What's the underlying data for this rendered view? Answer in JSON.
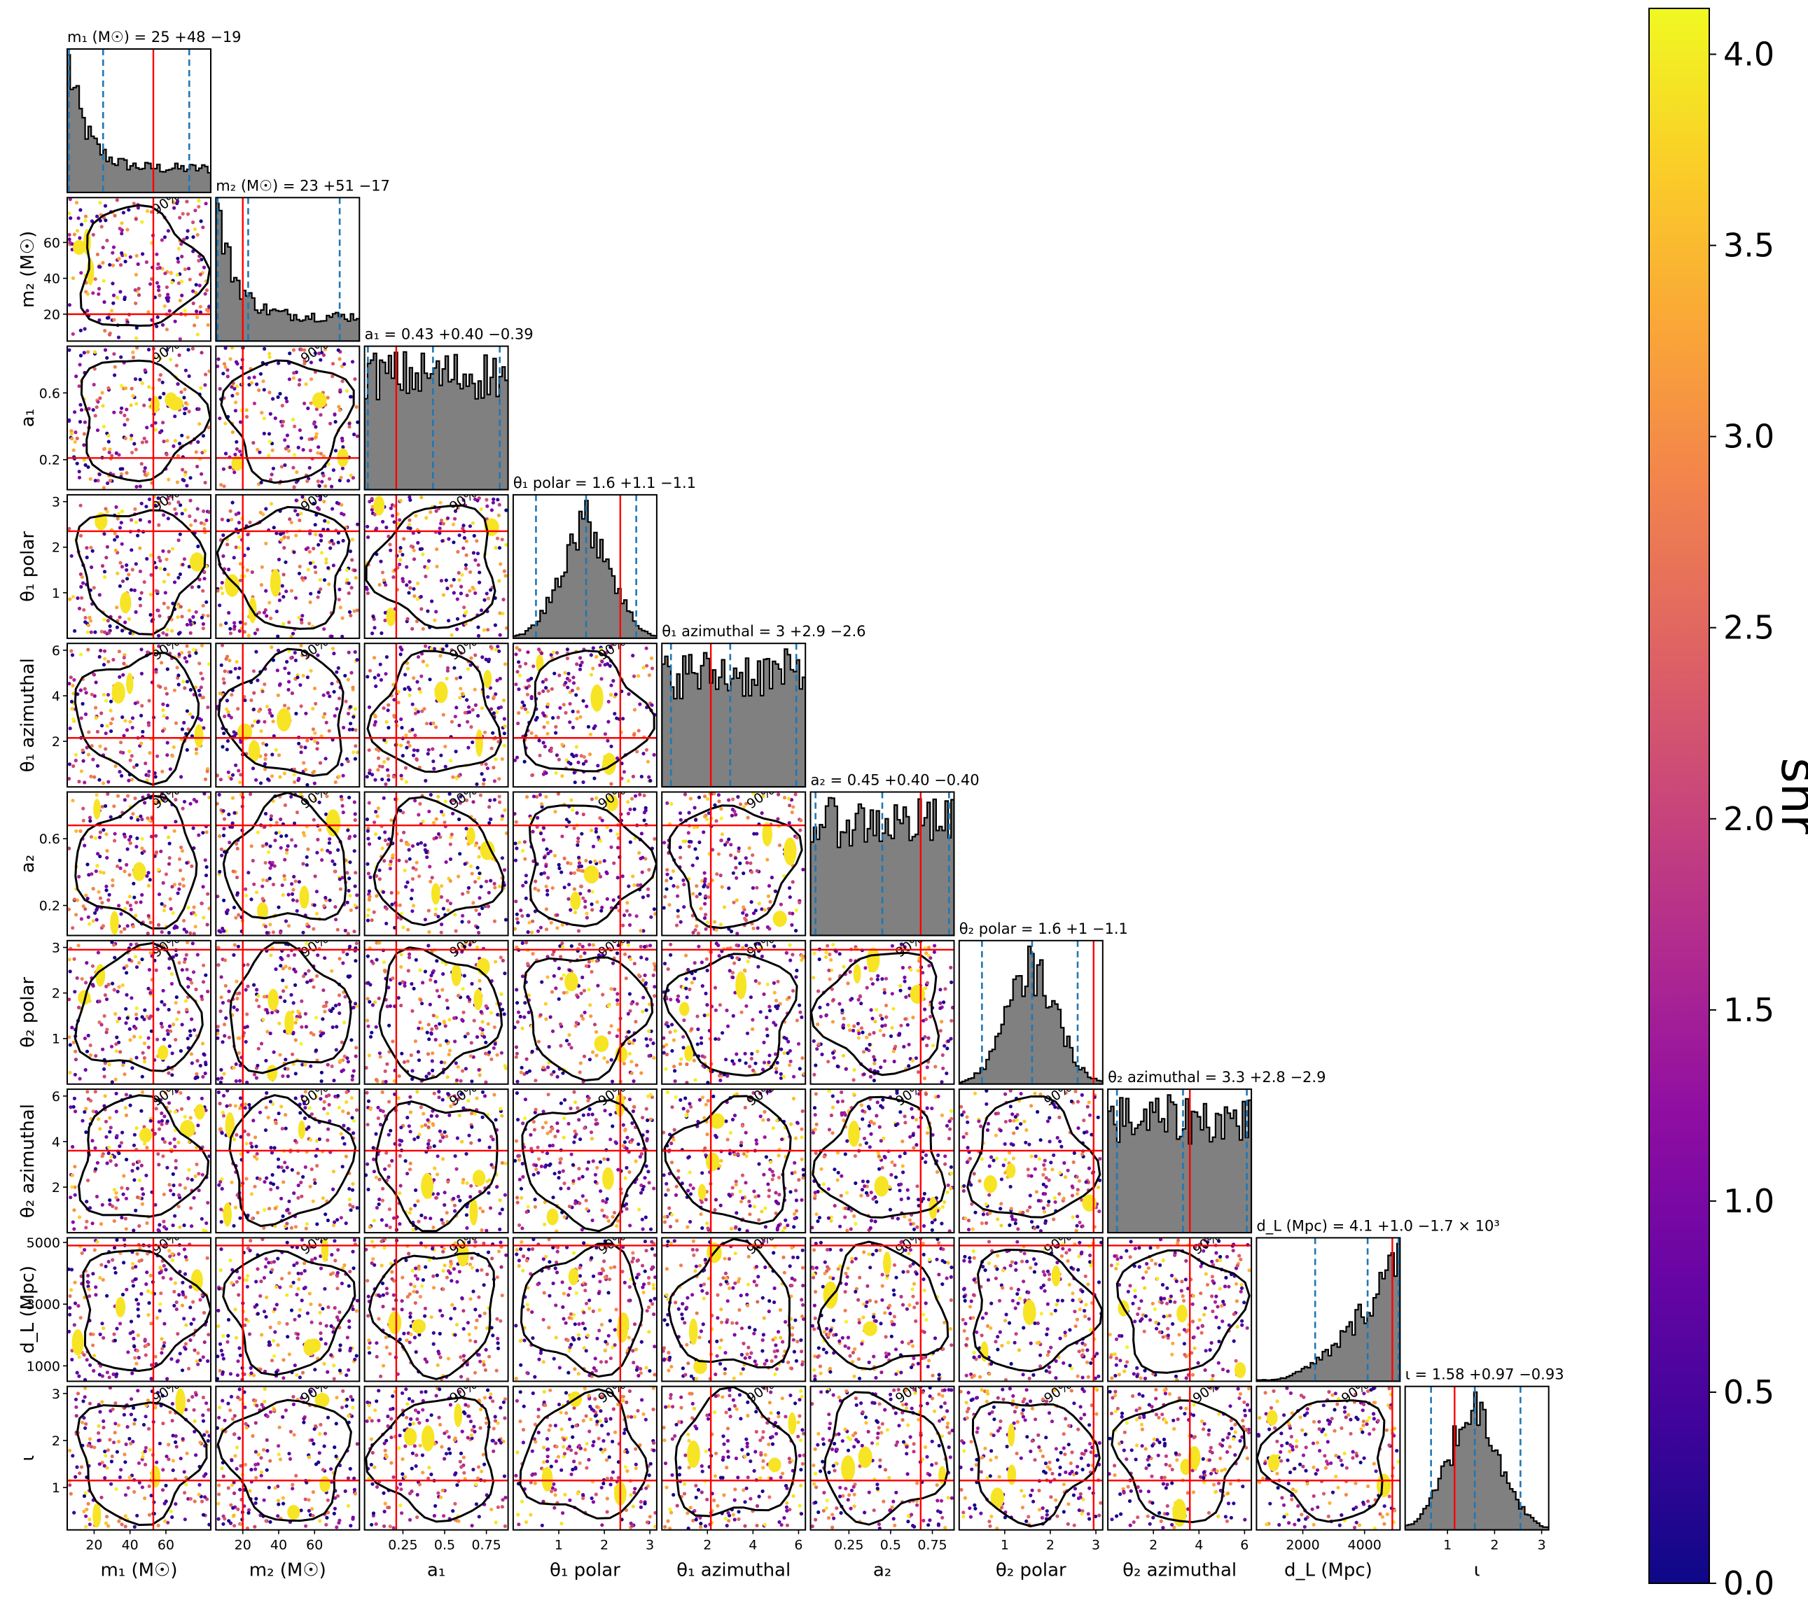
{
  "chart_data": {
    "type": "corner",
    "parameters": [
      {
        "id": "m1",
        "axis_label": "m₁ (M☉)",
        "title": "m₁ (M☉) = 25 +48 −19",
        "median": 25,
        "plus": 48,
        "minus": 19,
        "range": [
          5,
          85
        ],
        "ticks": [
          20,
          40,
          60
        ],
        "truth": 53
      },
      {
        "id": "m2",
        "axis_label": "m₂ (M☉)",
        "title": "m₂ (M☉) = 23 +51 −17",
        "median": 23,
        "plus": 51,
        "minus": 17,
        "range": [
          5,
          85
        ],
        "ticks": [
          20,
          40,
          60
        ],
        "truth": 20
      },
      {
        "id": "a1",
        "axis_label": "a₁",
        "title": "a₁ = 0.43 +0.40 −0.39",
        "median": 0.43,
        "plus": 0.4,
        "minus": 0.39,
        "range": [
          0.02,
          0.88
        ],
        "ticks": [
          0.25,
          0.5,
          0.75
        ],
        "yticks": [
          0.2,
          0.6
        ],
        "truth": 0.21
      },
      {
        "id": "theta1_polar",
        "axis_label": "θ₁ polar",
        "title": "θ₁ polar = 1.6 +1.1 −1.1",
        "median": 1.6,
        "plus": 1.1,
        "minus": 1.1,
        "range": [
          0,
          3.15
        ],
        "ticks": [
          1,
          2,
          3
        ],
        "truth": 2.35
      },
      {
        "id": "theta1_azimuthal",
        "axis_label": "θ₁ azimuthal",
        "title": "θ₁ azimuthal = 3 +2.9 −2.6",
        "median": 3,
        "plus": 2.9,
        "minus": 2.6,
        "range": [
          0,
          6.3
        ],
        "ticks": [
          2,
          4,
          6
        ],
        "truth": 2.15
      },
      {
        "id": "a2",
        "axis_label": "a₂",
        "title": "a₂ = 0.45 +0.40 −0.40",
        "median": 0.45,
        "plus": 0.4,
        "minus": 0.4,
        "range": [
          0.02,
          0.88
        ],
        "ticks": [
          0.25,
          0.5,
          0.75
        ],
        "yticks": [
          0.2,
          0.6
        ],
        "truth": 0.68
      },
      {
        "id": "theta2_polar",
        "axis_label": "θ₂ polar",
        "title": "θ₂ polar = 1.6 +1 −1.1",
        "median": 1.6,
        "plus": 1,
        "minus": 1.1,
        "range": [
          0,
          3.15
        ],
        "ticks": [
          1,
          2,
          3
        ],
        "truth": 2.95
      },
      {
        "id": "theta2_azimuthal",
        "axis_label": "θ₂ azimuthal",
        "title": "θ₂ azimuthal = 3.3 +2.8 −2.9",
        "median": 3.3,
        "plus": 2.8,
        "minus": 2.9,
        "range": [
          0,
          6.3
        ],
        "ticks": [
          2,
          4,
          6
        ],
        "truth": 3.6
      },
      {
        "id": "dL",
        "axis_label": "d_L (Mpc)",
        "title": "d_L (Mpc) = 4.1 +1.0 −1.7 × 10³",
        "median": 4100,
        "plus": 1000,
        "minus": 1700,
        "range": [
          500,
          5150
        ],
        "ticks": [
          2000,
          4000
        ],
        "yticks": [
          1000,
          3000,
          5000
        ],
        "truth": 4900
      },
      {
        "id": "iota",
        "axis_label": "ι",
        "title": "ι = 1.58 +0.97 −0.93",
        "median": 1.58,
        "plus": 0.97,
        "minus": 0.93,
        "range": [
          0.1,
          3.15
        ],
        "ticks": [
          1,
          2,
          3
        ],
        "truth": 1.15
      }
    ],
    "colorbar": {
      "label": "snr",
      "colormap": "plasma",
      "min": 0.0,
      "max": 4.12,
      "ticks": [
        "0.0",
        "0.5",
        "1.0",
        "1.5",
        "2.0",
        "2.5",
        "3.0",
        "3.5",
        "4.0"
      ]
    },
    "contour_level": "90%",
    "colors": {
      "truth_line": "#ff0000",
      "credible_line": "#1f77b4",
      "hist_fill": "#808080",
      "contour": "#000000"
    }
  }
}
